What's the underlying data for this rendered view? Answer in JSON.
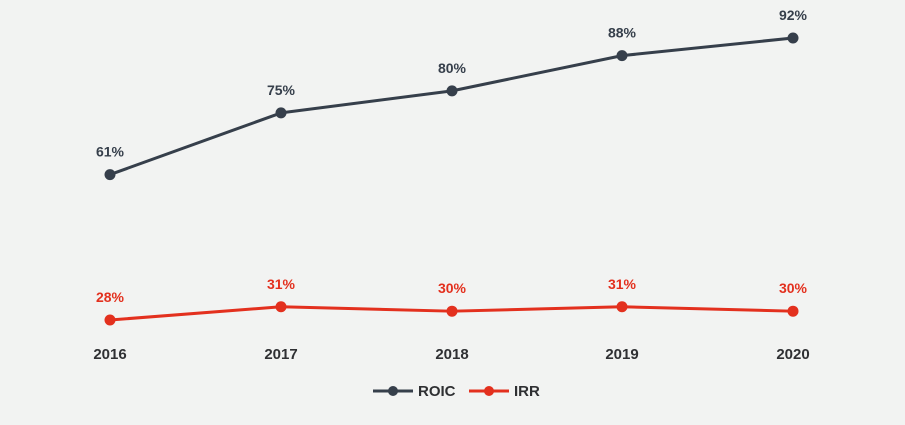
{
  "chart_data": {
    "type": "line",
    "x": [
      "2016",
      "2017",
      "2018",
      "2019",
      "2020"
    ],
    "series": [
      {
        "name": "ROIC",
        "color": "#363f4b",
        "values": [
          61,
          75,
          80,
          88,
          92
        ],
        "labels": [
          "61%",
          "75%",
          "80%",
          "88%",
          "92%"
        ]
      },
      {
        "name": "IRR",
        "color": "#e3301e",
        "values": [
          28,
          31,
          30,
          31,
          30
        ],
        "labels": [
          "28%",
          "31%",
          "30%",
          "31%",
          "30%"
        ]
      }
    ],
    "ylim": [
      28,
      92
    ],
    "grid": false,
    "legend": "bottom"
  }
}
